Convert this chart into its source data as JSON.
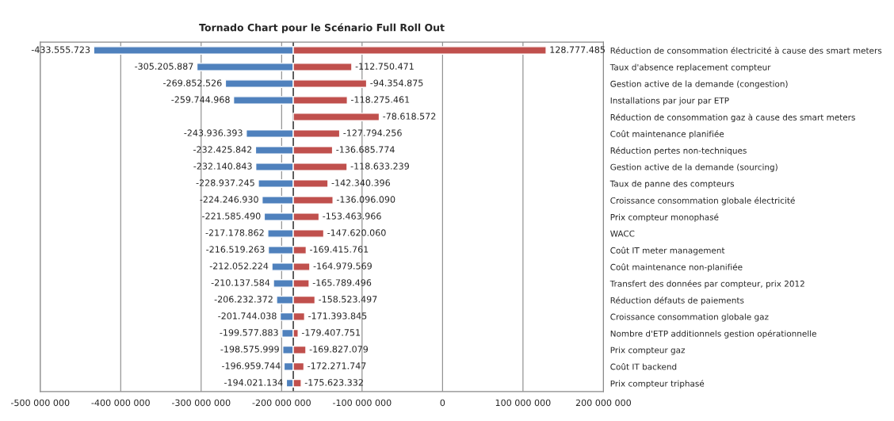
{
  "chart_data": {
    "type": "bar",
    "orientation": "horizontal",
    "title": "Tornado Chart pour le Scénario Full Roll Out",
    "categories": [
      "Réduction de consommation électricité à cause des smart meters",
      "Taux d'absence replacement compteur",
      "Gestion active de la demande (congestion)",
      "Installations par jour par ETP",
      "Réduction de consommation gaz à cause des smart meters",
      "Coût maintenance planifiée",
      "Réduction pertes non-techniques",
      "Gestion active de la demande (sourcing)",
      "Taux de panne des compteurs",
      "Croissance consommation globale électricité",
      "Prix compteur monophasé",
      "WACC",
      "Coût IT meter management",
      "Coût maintenance non-planifiée",
      "Transfert des données par compteur, prix 2012",
      "Réduction défauts de paiements",
      "Croissance consommation globale gaz",
      "Nombre d'ETP additionnels gestion opérationnelle",
      "Prix compteur gaz",
      "Coût IT backend",
      "Prix compteur triphasé"
    ],
    "series": [
      {
        "color": "#4f81bd",
        "base": [
          -185500000,
          -185500000,
          -185500000,
          -185500000,
          null,
          -185500000,
          -185500000,
          -185500000,
          -185500000,
          -185500000,
          -185500000,
          -185500000,
          -185500000,
          -185500000,
          -185500000,
          -185500000,
          -185500000,
          -185500000,
          -185500000,
          -185500000,
          -185500000
        ],
        "values": [
          -248055723,
          -119705887,
          -84352526,
          -74244968,
          null,
          -58436393,
          -46925842,
          -46640843,
          -43437245,
          -38746930,
          -36085490,
          -31678862,
          -31019263,
          -26552224,
          -24637584,
          -20732372,
          -16244038,
          -14077883,
          -13075999,
          -11459744,
          -8521134
        ],
        "value_labels": [
          "-433.555.723",
          "-305.205.887",
          "-269.852.526",
          "-259.744.968",
          null,
          "-243.936.393",
          "-232.425.842",
          "-232.140.843",
          "-228.937.245",
          "-224.246.930",
          "-221.585.490",
          "-217.178.862",
          "-216.519.263",
          "-212.052.224",
          "-210.137.584",
          "-206.232.372",
          "-201.744.038",
          "-199.577.883",
          "-198.575.999",
          "-196.959.744",
          "-194.021.134"
        ]
      },
      {
        "color": "#c0504d",
        "base": [
          -185500000,
          -185500000,
          -185500000,
          -185500000,
          -185500000,
          -185500000,
          -185500000,
          -185500000,
          -185500000,
          -185500000,
          -185500000,
          -185500000,
          -185500000,
          -185500000,
          -185500000,
          -185500000,
          -185500000,
          -185500000,
          -185500000,
          -185500000,
          -185500000
        ],
        "values": [
          314277485,
          72749529,
          91145125,
          67224539,
          106881428,
          57705744,
          48814226,
          66866761,
          43159604,
          49403910,
          32036034,
          37879940,
          16084239,
          20520431,
          19710504,
          26976503,
          14106155,
          6092249,
          15672921,
          13228253,
          9876668
        ],
        "value_labels": [
          "128.777.485",
          "-112.750.471",
          "-94.354.875",
          "-118.275.461",
          "-78.618.572",
          "-127.794.256",
          "-136.685.774",
          "-118.633.239",
          "-142.340.396",
          "-136.096.090",
          "-153.463.966",
          "-147.620.060",
          "-169.415.761",
          "-164.979.569",
          "-165.789.496",
          "-158.523.497",
          "-171.393.845",
          "-179.407.751",
          "-169.827.079",
          "-172.271.747",
          "-175.623.332"
        ]
      }
    ],
    "xlim": [
      -500000000,
      200000000
    ],
    "xticks": [
      {
        "value": -500000000,
        "label": "-500 000 000"
      },
      {
        "value": -400000000,
        "label": "-400 000 000"
      },
      {
        "value": -300000000,
        "label": "-300 000 000"
      },
      {
        "value": -200000000,
        "label": "-200 000 000"
      },
      {
        "value": -100000000,
        "label": "-100 000 000"
      },
      0,
      {
        "value": 100000000,
        "label": "100 000 000"
      },
      {
        "value": 200000000,
        "label": "200 000 000"
      }
    ],
    "ref_lines": [
      {
        "axis": "x",
        "value": -185500000,
        "color": "#000000"
      }
    ],
    "grid": "x",
    "legend": false
  }
}
